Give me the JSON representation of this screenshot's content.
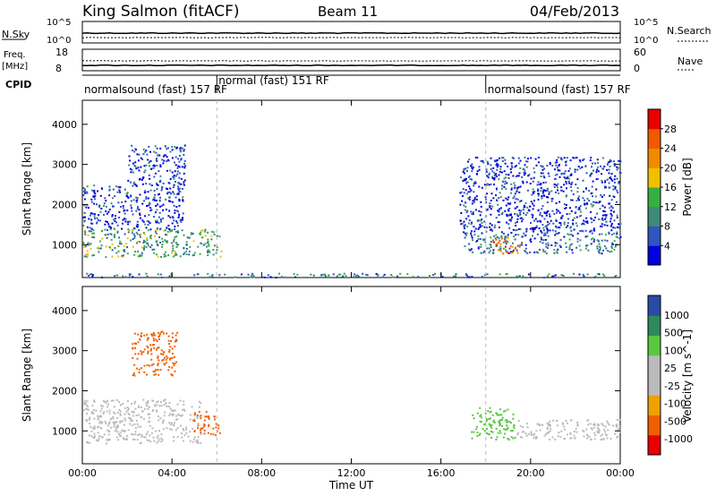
{
  "header": {
    "station": "King Salmon (fitACF)",
    "beam": "Beam 11",
    "date": "04/Feb/2013"
  },
  "status_panels": {
    "nsky_label": "N.Sky",
    "nsearch_label": "N.Search",
    "nsky_ticks": [
      "10^5",
      "10^0"
    ],
    "nsearch_ticks": [
      "10^5",
      "10^0"
    ],
    "freq_label_1": "Freq.",
    "freq_label_2": "[MHz]",
    "freq_ticks": [
      "18",
      "8"
    ],
    "nave_label": "Nave",
    "nave_ticks": [
      "60",
      "0"
    ],
    "cpid_label": "CPID",
    "cpid_segments": [
      {
        "start_hour": 0,
        "end_hour": 6,
        "text": "normalsound (fast) 157 RF"
      },
      {
        "start_hour": 6,
        "end_hour": 18,
        "text": "normal (fast) 151 RF"
      },
      {
        "start_hour": 18,
        "end_hour": 24,
        "text": "normalsound (fast) 157 RF"
      }
    ]
  },
  "colors": {
    "power_scale": [
      "#0000dd",
      "#2f55c0",
      "#3c8a78",
      "#36b040",
      "#f0c000",
      "#f08a00",
      "#f05a00",
      "#e80000"
    ],
    "velocity_scale": [
      "#e80000",
      "#f06000",
      "#f0a000",
      "#bbbbbb",
      "#bbbbbb",
      "#58c840",
      "#2e8a5a",
      "#2a4aa8"
    ]
  },
  "chart_data": [
    {
      "type": "heatmap",
      "title": "",
      "quantity": "Power",
      "xlabel": "",
      "ylabel": "Slant Range [km]",
      "x_range_hours": [
        0,
        24
      ],
      "ylim": [
        180,
        4600
      ],
      "x_ticks": [
        "00:00",
        "04:00",
        "08:00",
        "12:00",
        "16:00",
        "20:00",
        "00:00"
      ],
      "y_ticks": [
        1000,
        2000,
        3000,
        4000
      ],
      "colorbar": {
        "label": "Power [dB]",
        "ticks": [
          4,
          8,
          12,
          16,
          20,
          24,
          28
        ],
        "range": [
          0,
          32
        ]
      },
      "regions": [
        {
          "hours": [
            0.0,
            6.2
          ],
          "range_km": [
            700,
            1400
          ],
          "level": 12
        },
        {
          "hours": [
            0.0,
            4.5
          ],
          "range_km": [
            1400,
            2500
          ],
          "level": 4
        },
        {
          "hours": [
            2.0,
            4.6
          ],
          "range_km": [
            2500,
            3500
          ],
          "level": 4
        },
        {
          "hours": [
            17.0,
            24.0
          ],
          "range_km": [
            800,
            1300
          ],
          "level": 10
        },
        {
          "hours": [
            18.3,
            19.5
          ],
          "range_km": [
            800,
            1200
          ],
          "level": 24
        },
        {
          "hours": [
            16.8,
            24.0
          ],
          "range_km": [
            1300,
            3200
          ],
          "level": 4
        },
        {
          "hours": [
            0.0,
            24.0
          ],
          "range_km": [
            200,
            300
          ],
          "level": 8
        }
      ]
    },
    {
      "type": "heatmap",
      "title": "",
      "quantity": "Velocity",
      "xlabel": "Time UT",
      "ylabel": "Slant Range [km]",
      "x_range_hours": [
        0,
        24
      ],
      "ylim": [
        180,
        4600
      ],
      "x_ticks": [
        "00:00",
        "04:00",
        "08:00",
        "12:00",
        "16:00",
        "20:00",
        "00:00"
      ],
      "y_ticks": [
        1000,
        2000,
        3000,
        4000
      ],
      "colorbar": {
        "label": "Velocity [m s^-1]",
        "ticks": [
          1000,
          500,
          100,
          25,
          -25,
          -100,
          -500,
          -1000
        ]
      },
      "regions": [
        {
          "hours": [
            0.0,
            5.3
          ],
          "range_km": [
            700,
            1800
          ],
          "class": "ground"
        },
        {
          "hours": [
            4.9,
            6.1
          ],
          "range_km": [
            900,
            1500
          ],
          "class": "away_moderate"
        },
        {
          "hours": [
            17.3,
            19.3
          ],
          "range_km": [
            800,
            1600
          ],
          "class": "toward_slow"
        },
        {
          "hours": [
            19.3,
            24.0
          ],
          "range_km": [
            800,
            1300
          ],
          "class": "ground"
        },
        {
          "hours": [
            2.2,
            4.2
          ],
          "range_km": [
            2400,
            3500
          ],
          "class": "away_moderate"
        }
      ]
    }
  ]
}
